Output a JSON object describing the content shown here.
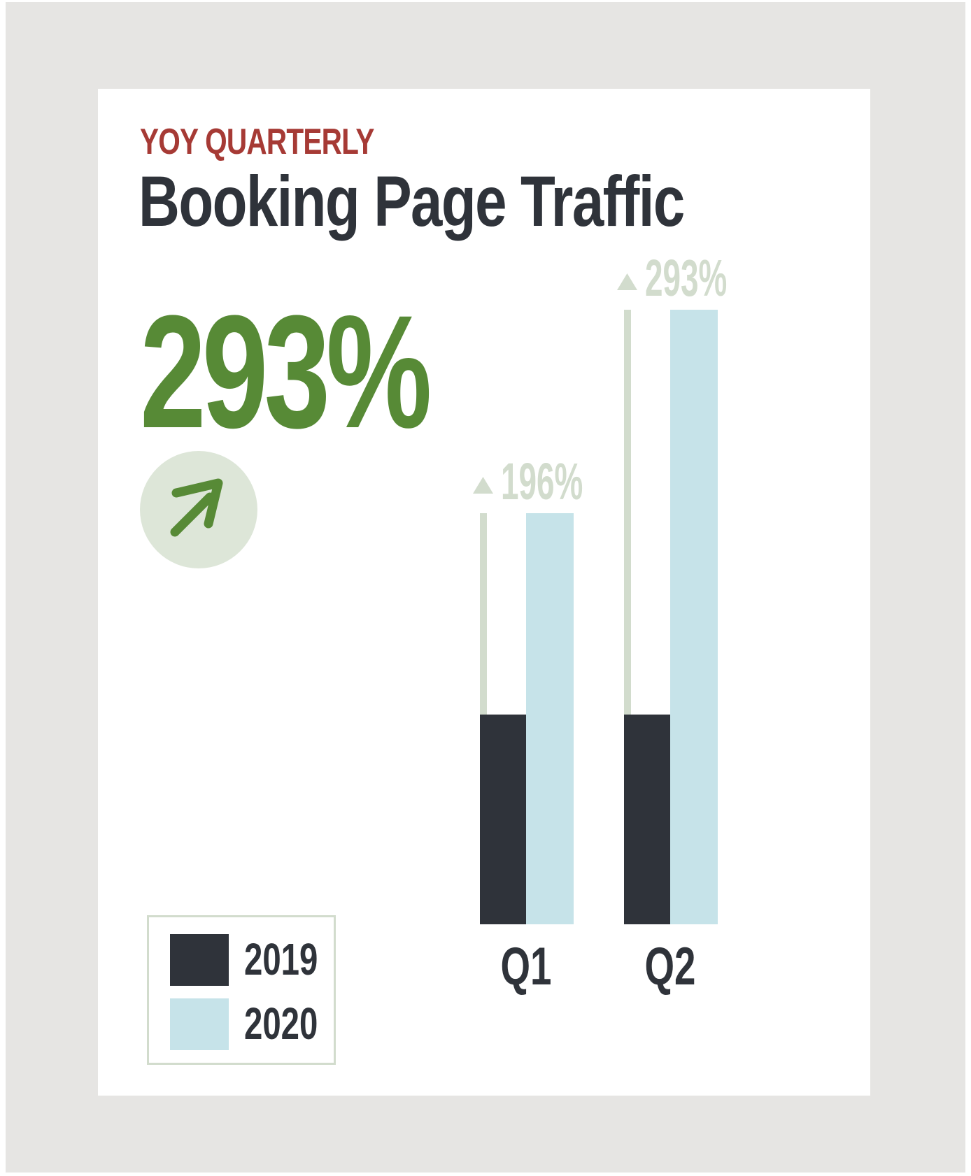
{
  "header": {
    "eyebrow": "YOY QUARTERLY",
    "title": "Booking Page Traffic"
  },
  "highlight": {
    "value": "293%",
    "icon": "arrow-up-right-icon"
  },
  "colors": {
    "series_2019": "#2f333a",
    "series_2020": "#c6e3e9",
    "growth_line": "#d2dccd",
    "growth_label": "#d2dccd",
    "highlight": "#578a36",
    "eyebrow": "#a63a35",
    "badge_bg": "#dde6d8"
  },
  "legend": {
    "items": [
      {
        "label": "2019",
        "color": "#2f333a"
      },
      {
        "label": "2020",
        "color": "#c6e3e9"
      }
    ]
  },
  "chart_data": {
    "type": "bar",
    "categories": [
      "Q1",
      "Q2"
    ],
    "series": [
      {
        "name": "2019",
        "values": [
          100,
          100
        ]
      },
      {
        "name": "2020",
        "values": [
          196,
          293
        ]
      }
    ],
    "annotations": [
      {
        "category": "Q1",
        "text": "196%",
        "icon": "triangle-up-icon"
      },
      {
        "category": "Q2",
        "text": "293%",
        "icon": "triangle-up-icon"
      }
    ],
    "ylim": [
      0,
      305
    ],
    "grid": false,
    "legend_position": "bottom-left",
    "title": "",
    "xlabel": "",
    "ylabel": ""
  }
}
